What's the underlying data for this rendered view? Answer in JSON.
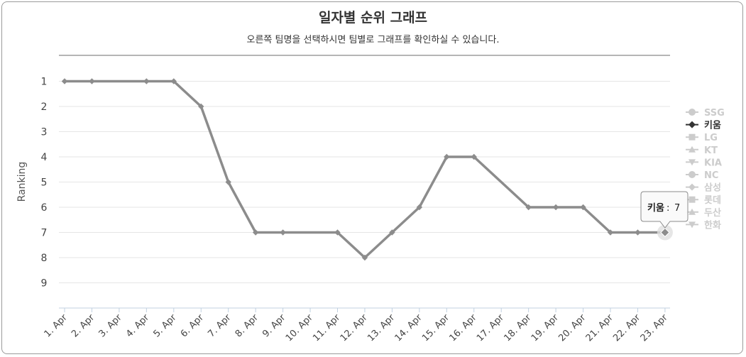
{
  "title": "일자별 순위 그래프",
  "subtitle": "오른쪽 팀명을 선택하시면 팀별로 그래프를 확인하실 수 있습니다.",
  "chart_data": {
    "type": "line",
    "title": "일자별 순위 그래프",
    "subtitle": "오른쪽 팀명을 선택하시면 팀별로 그래프를 확인하실 수 있습니다.",
    "ylabel": "Ranking",
    "xlabel": "",
    "y_reversed": true,
    "y_ticks": [
      1,
      2,
      3,
      4,
      5,
      6,
      7,
      8,
      9
    ],
    "categories": [
      "1. Apr",
      "2. Apr",
      "3. Apr",
      "4. Apr",
      "5. Apr",
      "6. Apr",
      "7. Apr",
      "8. Apr",
      "9. Apr",
      "10. Apr",
      "11. Apr",
      "12. Apr",
      "13. Apr",
      "14. Apr",
      "15. Apr",
      "16. Apr",
      "17. Apr",
      "18. Apr",
      "19. Apr",
      "20. Apr",
      "21. Apr",
      "22. Apr",
      "23. Apr"
    ],
    "series": [
      {
        "name": "키움",
        "visible": true,
        "color": "#8c8c8c",
        "values": [
          1,
          1,
          null,
          1,
          1,
          2,
          5,
          7,
          7,
          null,
          7,
          8,
          7,
          6,
          4,
          4,
          null,
          6,
          6,
          6,
          7,
          7,
          7
        ]
      }
    ],
    "legend": {
      "placement": "right",
      "items": [
        {
          "name": "SSG",
          "marker": "circle",
          "active": false
        },
        {
          "name": "키움",
          "marker": "diamond",
          "active": true
        },
        {
          "name": "LG",
          "marker": "square",
          "active": false
        },
        {
          "name": "KT",
          "marker": "triangle",
          "active": false
        },
        {
          "name": "KIA",
          "marker": "triangle-down",
          "active": false
        },
        {
          "name": "NC",
          "marker": "circle",
          "active": false
        },
        {
          "name": "삼성",
          "marker": "diamond",
          "active": false
        },
        {
          "name": "롯데",
          "marker": "square",
          "active": false
        },
        {
          "name": "두산",
          "marker": "triangle",
          "active": false
        },
        {
          "name": "한화",
          "marker": "triangle-down",
          "active": false
        }
      ],
      "active_color": "#333333",
      "inactive_color": "#cccccc"
    },
    "tooltip": {
      "series": "키움",
      "value": 7,
      "category": "23. Apr",
      "label": "키움",
      "value_text": "7"
    },
    "grid": true
  }
}
